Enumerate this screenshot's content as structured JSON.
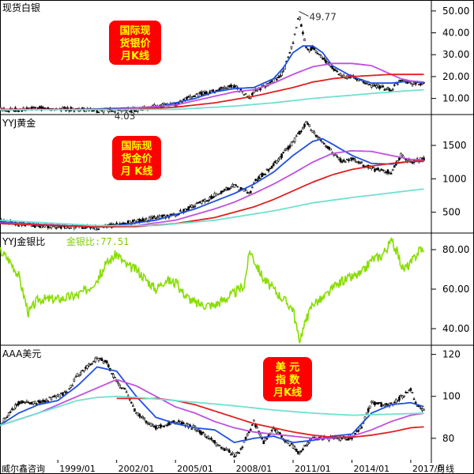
{
  "chart_data": [
    {
      "type": "line",
      "title": "现货白银",
      "box_label": [
        "国际现",
        "货银价",
        "月K线"
      ],
      "y_ticks": [
        10,
        20,
        30,
        40,
        50
      ],
      "y_tick_labels": [
        "10.00",
        "20.00",
        "30.00",
        "40.00",
        "50.00"
      ],
      "ylim": [
        3,
        55
      ],
      "annotations": [
        {
          "text": "49.77",
          "x": 2011.3,
          "y": 49.77
        },
        {
          "text": "4.03",
          "x": 2001.8,
          "y": 4.03
        }
      ],
      "series": [
        {
          "color": "#000000",
          "style": "candles",
          "x": [
            1996,
            1997,
            1998,
            1999,
            2000,
            2001,
            2002,
            2003,
            2004,
            2005,
            2006,
            2007,
            2008,
            2008.8,
            2009,
            2010,
            2010.5,
            2011,
            2011.3,
            2011.7,
            2012,
            2013,
            2013.5,
            2014,
            2015,
            2016,
            2016.5,
            2017,
            2017.7
          ],
          "values": [
            5.2,
            4.8,
            5.5,
            5.2,
            5.0,
            4.4,
            4.6,
            4.9,
            6.5,
            7.2,
            11.5,
            13.5,
            16,
            10,
            13,
            18,
            22,
            35,
            48,
            32,
            33,
            24,
            20,
            20,
            16,
            14,
            19,
            17,
            16.5
          ]
        },
        {
          "color": "#1f4fe0",
          "x": [
            1996,
            2000,
            2004,
            2006,
            2007,
            2008,
            2009,
            2010,
            2010.5,
            2011,
            2011.5,
            2012,
            2012.5,
            2013,
            2014,
            2015,
            2016,
            2017,
            2017.7
          ],
          "values": [
            5,
            5,
            6,
            10,
            13,
            14.5,
            15,
            19,
            24,
            31,
            34,
            34,
            31,
            25,
            20,
            17,
            17,
            18,
            17
          ]
        },
        {
          "color": "#c050e0",
          "x": [
            1996,
            2002,
            2005,
            2007,
            2008,
            2009,
            2010,
            2011,
            2012,
            2013,
            2014,
            2015,
            2016,
            2016.5,
            2017,
            2017.7
          ],
          "values": [
            5,
            5,
            7,
            11,
            13,
            14,
            17,
            21,
            24.5,
            26,
            26,
            25,
            21,
            19,
            18,
            17.5
          ]
        },
        {
          "color": "#e02020",
          "x": [
            1996,
            2003,
            2005,
            2007,
            2008,
            2009,
            2010,
            2011,
            2012,
            2013,
            2014,
            2015,
            2016,
            2017,
            2017.7
          ],
          "values": [
            5,
            5,
            6,
            8,
            9.5,
            11,
            13,
            15,
            17.5,
            19,
            20,
            20.5,
            21,
            21,
            21
          ]
        },
        {
          "color": "#70e0d0",
          "x": [
            1996,
            2005,
            2008,
            2010,
            2012,
            2014,
            2016,
            2017.7
          ],
          "values": [
            4.8,
            5,
            6.5,
            8,
            10,
            11.5,
            13,
            14
          ]
        }
      ]
    },
    {
      "type": "line",
      "title": "YYJ黄金",
      "box_label": [
        "国际现",
        "货金价",
        "月 K线"
      ],
      "y_ticks": [
        500,
        1000,
        1500
      ],
      "y_tick_labels": [
        "500",
        "1000",
        "1500"
      ],
      "ylim": [
        200,
        1950
      ],
      "series": [
        {
          "color": "#000000",
          "style": "candles",
          "x": [
            1996,
            1997,
            1998,
            1999,
            2000,
            2001,
            2002,
            2003,
            2004,
            2005,
            2006,
            2007,
            2008,
            2008.8,
            2009,
            2010,
            2011,
            2011.7,
            2012,
            2013,
            2013.5,
            2014,
            2015,
            2016,
            2016.5,
            2017,
            2017.7
          ],
          "values": [
            380,
            330,
            295,
            285,
            280,
            265,
            310,
            360,
            420,
            460,
            600,
            750,
            900,
            780,
            950,
            1200,
            1550,
            1850,
            1700,
            1400,
            1250,
            1300,
            1150,
            1100,
            1350,
            1250,
            1300
          ]
        },
        {
          "color": "#1f4fe0",
          "x": [
            1996,
            2000,
            2002,
            2004,
            2006,
            2008,
            2009,
            2010,
            2011,
            2012,
            2012.5,
            2013,
            2014,
            2015,
            2016,
            2017,
            2017.7
          ],
          "values": [
            350,
            290,
            300,
            380,
            550,
            780,
            920,
            1100,
            1350,
            1560,
            1600,
            1520,
            1350,
            1230,
            1220,
            1260,
            1260
          ]
        },
        {
          "color": "#c050e0",
          "x": [
            1996,
            2001,
            2003,
            2005,
            2007,
            2008,
            2009,
            2010,
            2011,
            2012,
            2013,
            2014,
            2015,
            2016,
            2017,
            2017.7
          ],
          "values": [
            340,
            280,
            300,
            380,
            550,
            650,
            780,
            920,
            1080,
            1250,
            1380,
            1420,
            1410,
            1350,
            1290,
            1280
          ]
        },
        {
          "color": "#e02020",
          "x": [
            1996,
            2001,
            2003,
            2005,
            2007,
            2008,
            2009,
            2010,
            2011,
            2012,
            2013,
            2014,
            2015,
            2016,
            2017,
            2017.7
          ],
          "values": [
            330,
            280,
            285,
            330,
            420,
            500,
            580,
            690,
            820,
            950,
            1060,
            1140,
            1190,
            1230,
            1260,
            1270
          ]
        },
        {
          "color": "#70e0d0",
          "x": [
            1996,
            2001,
            2004,
            2007,
            2010,
            2012,
            2014,
            2016,
            2017.7
          ],
          "values": [
            380,
            300,
            300,
            380,
            520,
            640,
            720,
            790,
            850
          ]
        }
      ]
    },
    {
      "type": "line",
      "title": "YYJ金银比",
      "value_label": "金银比:77.51",
      "y_ticks": [
        40,
        60,
        80
      ],
      "y_tick_labels": [
        "40.00",
        "60.00",
        "80.00"
      ],
      "ylim": [
        32,
        88
      ],
      "series": [
        {
          "color": "#88dd00",
          "x": [
            1996,
            1996.5,
            1997,
            1997.5,
            1998,
            1999,
            2000,
            2000.5,
            2001,
            2001.5,
            2002,
            2002.5,
            2003,
            2003.5,
            2004,
            2004.5,
            2005,
            2005.5,
            2006,
            2006.5,
            2007,
            2007.5,
            2008,
            2008.5,
            2008.8,
            2009,
            2009.5,
            2010,
            2010.5,
            2011,
            2011.3,
            2011.7,
            2012,
            2012.5,
            2013,
            2013.5,
            2014,
            2014.5,
            2015,
            2015.5,
            2016,
            2016.3,
            2016.6,
            2017,
            2017.5,
            2017.7
          ],
          "values": [
            80,
            75,
            67,
            48,
            55,
            55,
            57,
            60,
            65,
            73,
            78,
            72,
            70,
            65,
            60,
            65,
            63,
            57,
            53,
            52,
            52,
            55,
            58,
            62,
            80,
            75,
            65,
            60,
            55,
            50,
            34,
            45,
            53,
            55,
            60,
            64,
            66,
            68,
            75,
            77,
            84,
            79,
            70,
            73,
            81,
            77.51
          ]
        }
      ]
    },
    {
      "type": "line",
      "title": "AAA美元",
      "box_label": [
        "美  元",
        "指  数",
        "月K线"
      ],
      "y_ticks": [
        80,
        100,
        120
      ],
      "y_tick_labels": [
        "80",
        "100",
        "120"
      ],
      "ylim": [
        69,
        124
      ],
      "x_ticks": [
        1999,
        2002,
        2005,
        2008,
        2011,
        2014,
        2017
      ],
      "x_tick_labels": [
        "1999/01",
        "2002/01",
        "2005/01",
        "2008/01",
        "2011/01",
        "2014/01",
        "2017/0"
      ],
      "x_range": [
        1996.05,
        2018.05
      ],
      "left_caption": "威尔鑫咨询",
      "right_caption": "月线",
      "series": [
        {
          "color": "#000000",
          "style": "candles",
          "x": [
            1996,
            1997,
            1998,
            1999,
            1999.5,
            2000,
            2001,
            2001.5,
            2002,
            2002.5,
            2003,
            2004,
            2005,
            2006,
            2007,
            2008,
            2008.3,
            2009,
            2009.5,
            2010,
            2010.5,
            2011,
            2011.3,
            2012,
            2013,
            2014,
            2014.5,
            2015,
            2015.5,
            2016,
            2017,
            2017.3,
            2017.7
          ],
          "values": [
            86,
            97,
            97,
            100,
            102,
            110,
            118,
            116,
            107,
            102,
            92,
            85,
            88,
            85,
            78,
            72,
            74,
            88,
            78,
            85,
            80,
            76,
            73,
            80,
            80,
            80,
            86,
            97,
            96,
            96,
            103,
            96,
            93
          ]
        },
        {
          "color": "#1f4fe0",
          "x": [
            1996,
            1997,
            1998,
            1999,
            2000,
            2001,
            2002,
            2003,
            2004,
            2005,
            2006,
            2007,
            2008,
            2009,
            2010,
            2011,
            2012,
            2013,
            2014,
            2015,
            2016,
            2017,
            2017.7
          ],
          "values": [
            86,
            92,
            96,
            98,
            105,
            114,
            112,
            100,
            90,
            87,
            85,
            84,
            78,
            80,
            81,
            78,
            79,
            81,
            82,
            92,
            96,
            97,
            95
          ]
        },
        {
          "color": "#c050e0",
          "x": [
            1996,
            1998,
            2000,
            2001,
            2002,
            2003,
            2004,
            2005,
            2006,
            2007,
            2008,
            2009,
            2010,
            2011,
            2012,
            2013,
            2014,
            2015,
            2016,
            2017,
            2017.7
          ],
          "values": [
            86,
            92,
            100,
            104,
            108,
            105,
            100,
            95,
            92,
            88,
            85,
            83,
            82,
            81,
            80,
            80,
            81,
            84,
            88,
            91,
            92
          ]
        },
        {
          "color": "#e02020",
          "x": [
            2002,
            2003,
            2004,
            2005,
            2006,
            2007,
            2008,
            2009,
            2010,
            2011,
            2012,
            2013,
            2014,
            2015,
            2016,
            2017,
            2017.7
          ],
          "values": [
            99,
            99,
            99,
            98,
            96,
            93,
            90,
            87,
            85,
            83,
            81.5,
            80.5,
            80.5,
            81.5,
            83,
            85,
            85.5
          ]
        },
        {
          "color": "#70e0d0",
          "x": [
            1996,
            1998,
            2000,
            2001,
            2002,
            2003,
            2005,
            2008,
            2010,
            2012,
            2014,
            2016,
            2017.7
          ],
          "values": [
            86,
            92,
            98,
            99.5,
            100,
            99.5,
            98,
            95.5,
            93.5,
            92,
            91,
            91.5,
            92
          ]
        }
      ]
    }
  ]
}
